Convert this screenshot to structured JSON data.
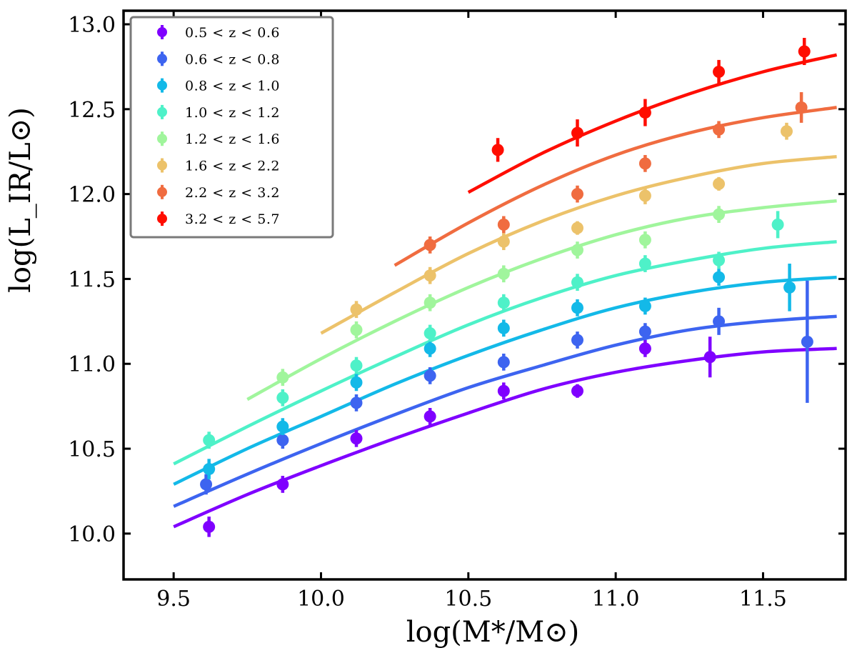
{
  "chart_data": {
    "type": "scatter",
    "title": "",
    "xlabel": "log(M*/M⊙)",
    "ylabel": "log(L_IR/L⊙)",
    "xlim": [
      9.33,
      11.78
    ],
    "ylim": [
      9.73,
      13.08
    ],
    "xticks": [
      "9.5",
      "10.0",
      "10.5",
      "11.0",
      "11.5"
    ],
    "yticks": [
      "10.0",
      "10.5",
      "11.0",
      "11.5",
      "12.0",
      "12.5",
      "13.0"
    ],
    "legend_position": "top-left",
    "series": [
      {
        "name": "0.5 < z < 0.6",
        "color": "#7f00ff",
        "points": [
          [
            9.62,
            10.04,
            0.06
          ],
          [
            9.87,
            10.29,
            0.05
          ],
          [
            10.12,
            10.56,
            0.05
          ],
          [
            10.37,
            10.69,
            0.05
          ],
          [
            10.62,
            10.84,
            0.05
          ],
          [
            10.87,
            10.84,
            0.04
          ],
          [
            11.1,
            11.09,
            0.05
          ],
          [
            11.32,
            11.04,
            0.12
          ]
        ],
        "fit": [
          [
            9.5,
            10.04
          ],
          [
            9.75,
            10.23
          ],
          [
            10.0,
            10.4
          ],
          [
            10.25,
            10.56
          ],
          [
            10.5,
            10.71
          ],
          [
            10.75,
            10.85
          ],
          [
            11.0,
            10.95
          ],
          [
            11.25,
            11.02
          ],
          [
            11.5,
            11.07
          ],
          [
            11.75,
            11.09
          ]
        ]
      },
      {
        "name": "0.6 < z < 0.8",
        "color": "#3d64f0",
        "points": [
          [
            9.61,
            10.29,
            0.06
          ],
          [
            9.87,
            10.55,
            0.05
          ],
          [
            10.12,
            10.77,
            0.05
          ],
          [
            10.37,
            10.93,
            0.05
          ],
          [
            10.62,
            11.01,
            0.05
          ],
          [
            10.87,
            11.14,
            0.05
          ],
          [
            11.1,
            11.19,
            0.05
          ],
          [
            11.35,
            11.25,
            0.08
          ],
          [
            11.65,
            11.13,
            0.36
          ]
        ],
        "fit": [
          [
            9.5,
            10.16
          ],
          [
            9.75,
            10.35
          ],
          [
            10.0,
            10.53
          ],
          [
            10.25,
            10.7
          ],
          [
            10.5,
            10.86
          ],
          [
            10.75,
            10.99
          ],
          [
            11.0,
            11.11
          ],
          [
            11.25,
            11.2
          ],
          [
            11.5,
            11.25
          ],
          [
            11.75,
            11.28
          ]
        ]
      },
      {
        "name": "0.8 < z < 1.0",
        "color": "#13b9e8",
        "points": [
          [
            9.62,
            10.38,
            0.06
          ],
          [
            9.87,
            10.63,
            0.05
          ],
          [
            10.12,
            10.89,
            0.05
          ],
          [
            10.37,
            11.09,
            0.05
          ],
          [
            10.62,
            11.21,
            0.05
          ],
          [
            10.87,
            11.33,
            0.05
          ],
          [
            11.1,
            11.34,
            0.05
          ],
          [
            11.35,
            11.51,
            0.05
          ],
          [
            11.59,
            11.45,
            0.14
          ]
        ],
        "fit": [
          [
            9.5,
            10.29
          ],
          [
            9.75,
            10.5
          ],
          [
            10.0,
            10.69
          ],
          [
            10.25,
            10.88
          ],
          [
            10.5,
            11.05
          ],
          [
            10.75,
            11.2
          ],
          [
            11.0,
            11.33
          ],
          [
            11.25,
            11.42
          ],
          [
            11.5,
            11.48
          ],
          [
            11.75,
            11.51
          ]
        ]
      },
      {
        "name": "1.0 < z < 1.2",
        "color": "#4ef1c8",
        "points": [
          [
            9.62,
            10.55,
            0.05
          ],
          [
            9.87,
            10.8,
            0.05
          ],
          [
            10.12,
            10.99,
            0.05
          ],
          [
            10.37,
            11.18,
            0.05
          ],
          [
            10.62,
            11.36,
            0.05
          ],
          [
            10.87,
            11.48,
            0.05
          ],
          [
            11.1,
            11.59,
            0.05
          ],
          [
            11.35,
            11.61,
            0.05
          ],
          [
            11.55,
            11.82,
            0.08
          ]
        ],
        "fit": [
          [
            9.5,
            10.41
          ],
          [
            9.75,
            10.63
          ],
          [
            10.0,
            10.84
          ],
          [
            10.25,
            11.04
          ],
          [
            10.5,
            11.23
          ],
          [
            10.75,
            11.39
          ],
          [
            11.0,
            11.52
          ],
          [
            11.25,
            11.61
          ],
          [
            11.5,
            11.68
          ],
          [
            11.75,
            11.72
          ]
        ]
      },
      {
        "name": "1.2 < z < 1.6",
        "color": "#a0f59c",
        "points": [
          [
            9.87,
            10.92,
            0.05
          ],
          [
            10.12,
            11.2,
            0.05
          ],
          [
            10.37,
            11.36,
            0.05
          ],
          [
            10.62,
            11.53,
            0.05
          ],
          [
            10.87,
            11.67,
            0.05
          ],
          [
            11.1,
            11.73,
            0.05
          ],
          [
            11.35,
            11.88,
            0.05
          ]
        ],
        "fit": [
          [
            9.75,
            10.79
          ],
          [
            10.0,
            11.03
          ],
          [
            10.25,
            11.25
          ],
          [
            10.5,
            11.45
          ],
          [
            10.75,
            11.62
          ],
          [
            11.0,
            11.76
          ],
          [
            11.25,
            11.86
          ],
          [
            11.5,
            11.92
          ],
          [
            11.75,
            11.96
          ]
        ]
      },
      {
        "name": "1.6 < z < 2.2",
        "color": "#ecc26a",
        "points": [
          [
            10.12,
            11.32,
            0.05
          ],
          [
            10.37,
            11.52,
            0.05
          ],
          [
            10.62,
            11.72,
            0.05
          ],
          [
            10.87,
            11.8,
            0.04
          ],
          [
            11.1,
            11.99,
            0.05
          ],
          [
            11.35,
            12.06,
            0.04
          ],
          [
            11.58,
            12.37,
            0.05
          ]
        ],
        "fit": [
          [
            10.0,
            11.18
          ],
          [
            10.25,
            11.42
          ],
          [
            10.5,
            11.65
          ],
          [
            10.75,
            11.84
          ],
          [
            11.0,
            11.99
          ],
          [
            11.25,
            12.1
          ],
          [
            11.5,
            12.18
          ],
          [
            11.75,
            12.22
          ]
        ]
      },
      {
        "name": "2.2 < z < 3.2",
        "color": "#f06c40",
        "points": [
          [
            10.37,
            11.7,
            0.05
          ],
          [
            10.62,
            11.82,
            0.05
          ],
          [
            10.87,
            12.0,
            0.05
          ],
          [
            11.1,
            12.18,
            0.05
          ],
          [
            11.35,
            12.38,
            0.05
          ],
          [
            11.63,
            12.51,
            0.09
          ]
        ],
        "fit": [
          [
            10.25,
            11.58
          ],
          [
            10.5,
            11.83
          ],
          [
            10.75,
            12.05
          ],
          [
            11.0,
            12.23
          ],
          [
            11.25,
            12.36
          ],
          [
            11.5,
            12.45
          ],
          [
            11.75,
            12.51
          ]
        ]
      },
      {
        "name": "3.2 < z < 5.7",
        "color": "#ff0d00",
        "points": [
          [
            10.6,
            12.26,
            0.07
          ],
          [
            10.87,
            12.36,
            0.08
          ],
          [
            11.1,
            12.48,
            0.08
          ],
          [
            11.35,
            12.72,
            0.07
          ],
          [
            11.64,
            12.84,
            0.08
          ]
        ],
        "fit": [
          [
            10.5,
            12.01
          ],
          [
            10.75,
            12.24
          ],
          [
            11.0,
            12.43
          ],
          [
            11.25,
            12.59
          ],
          [
            11.5,
            12.72
          ],
          [
            11.75,
            12.82
          ]
        ]
      }
    ]
  }
}
